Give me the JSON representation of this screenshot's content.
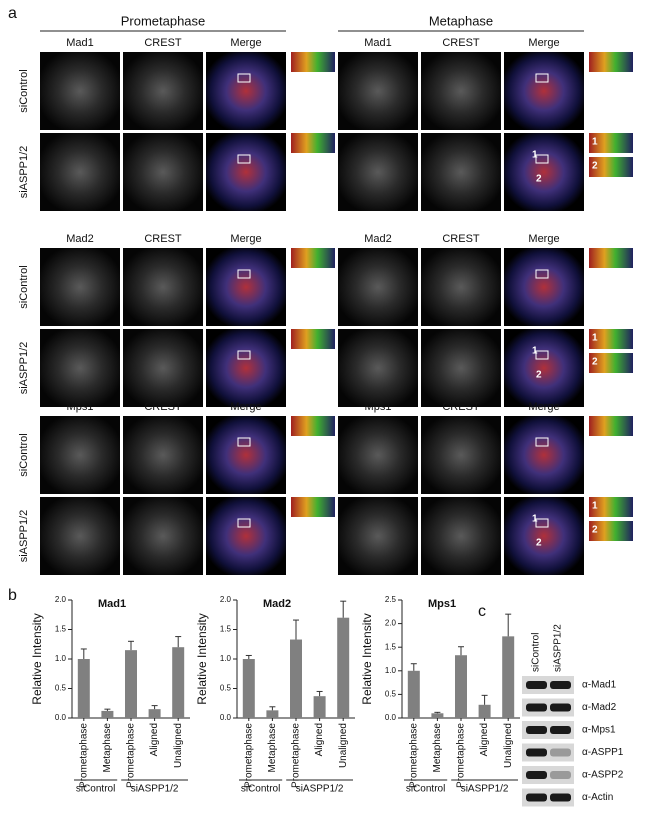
{
  "panel_labels": [
    "a",
    "b",
    "c"
  ],
  "microscopy": {
    "stages": [
      "Prometaphase",
      "Metaphase"
    ],
    "blocks": [
      {
        "channels": [
          "Mad1",
          "CREST",
          "Merge"
        ],
        "conditions": [
          "siControl",
          "siASPP1/2"
        ]
      },
      {
        "channels": [
          "Mad2",
          "CREST",
          "Merge"
        ],
        "conditions": [
          "siControl",
          "siASPP1/2"
        ]
      },
      {
        "channels": [
          "Mps1",
          "CREST",
          "Merge"
        ],
        "conditions": [
          "siControl",
          "siASPP1/2"
        ]
      }
    ],
    "inset_numbers": [
      "1",
      "2"
    ]
  },
  "chart_data": [
    {
      "type": "bar",
      "title": "Mad1",
      "ylabel": "Relative Intensity",
      "color": "#808080",
      "ylim": [
        0,
        2
      ],
      "yticks": [
        {
          "value": 0,
          "label": "0.0"
        },
        0.5,
        {
          "value": 1,
          "label": "1.0"
        },
        1.5,
        {
          "value": 2,
          "label": "2.0"
        }
      ],
      "groups": [
        {
          "name": "siControl",
          "categories": [
            "Prometaphase",
            "Metaphase"
          ],
          "values": [
            1.0,
            0.12
          ],
          "errors": [
            0.17,
            0.03
          ]
        },
        {
          "name": "siASPP1/2",
          "categories": [
            "Prometaphase",
            "Aligned",
            "Unaligned"
          ],
          "values": [
            1.15,
            0.15,
            1.2
          ],
          "errors": [
            0.15,
            0.06,
            0.18
          ]
        }
      ]
    },
    {
      "type": "bar",
      "title": "Mad2",
      "ylabel": "Relative Intensity",
      "color": "#808080",
      "ylim": [
        0,
        2
      ],
      "yticks": [
        {
          "value": 0,
          "label": "0.0"
        },
        0.5,
        {
          "value": 1,
          "label": "1.0"
        },
        1.5,
        {
          "value": 2,
          "label": "2.0"
        }
      ],
      "groups": [
        {
          "name": "siControl",
          "categories": [
            "Prometaphase",
            "Metaphase"
          ],
          "values": [
            1.0,
            0.13
          ],
          "errors": [
            0.06,
            0.06
          ]
        },
        {
          "name": "siASPP1/2",
          "categories": [
            "Prometaphase",
            "Aligned",
            "Unaligned"
          ],
          "values": [
            1.33,
            0.37,
            1.7
          ],
          "errors": [
            0.33,
            0.08,
            0.28
          ]
        }
      ]
    },
    {
      "type": "bar",
      "title": "Mps1",
      "ylabel": "Relative Intensitv",
      "color": "#808080",
      "ylim": [
        0,
        2.5
      ],
      "yticks": [
        {
          "value": 0,
          "label": "0.0"
        },
        0.5,
        {
          "value": 1,
          "label": "1.0"
        },
        1.5,
        {
          "value": 2,
          "label": "2.0"
        },
        2.5
      ],
      "groups": [
        {
          "name": "siControl",
          "categories": [
            "Prometaphase",
            "Metaphase"
          ],
          "values": [
            1.0,
            0.1
          ],
          "errors": [
            0.15,
            0.02
          ]
        },
        {
          "name": "siASPP1/2",
          "categories": [
            "Prometaphase",
            "Aligned",
            "Unaligned"
          ],
          "values": [
            1.33,
            0.28,
            1.73
          ],
          "errors": [
            0.18,
            0.2,
            0.47
          ]
        }
      ]
    }
  ],
  "western_blot": {
    "lanes": [
      "siControl",
      "siASPP1/2"
    ],
    "bands": [
      "α-Mad1",
      "α-Mad2",
      "α-Mps1",
      "α-ASPP1",
      "α-ASPP2",
      "α-Actin"
    ]
  }
}
